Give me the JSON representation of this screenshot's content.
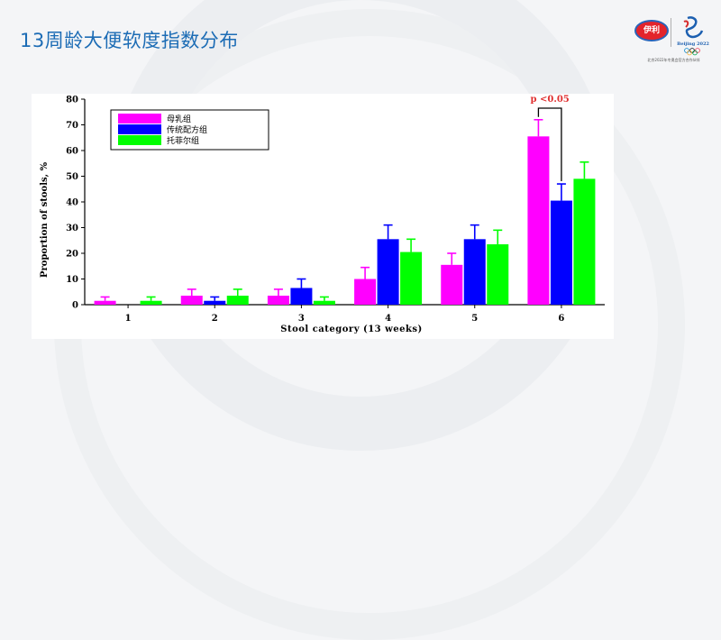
{
  "slide": {
    "title": "13周龄大便软度指数分布",
    "logo_text": "伊利",
    "emblem_text": "Beijing 2022",
    "sponsor_text": "北京2022年冬奥会官方合作伙伴"
  },
  "colors": {
    "title": "#1c6cb5",
    "series": [
      "#ff00ff",
      "#0000ff",
      "#00ff00"
    ],
    "annotation": "#e03030"
  },
  "chart_data": {
    "type": "bar",
    "xlabel": "Stool category (13 weeks)",
    "ylabel": "Proportion of stools, %",
    "ylim": [
      0,
      80
    ],
    "yticks": [
      0,
      10,
      20,
      30,
      40,
      50,
      60,
      70,
      80
    ],
    "categories": [
      "1",
      "2",
      "3",
      "4",
      "5",
      "6"
    ],
    "series": [
      {
        "name": "母乳组",
        "values": [
          1.5,
          3.5,
          3.5,
          10,
          15.5,
          65.5
        ],
        "errors": [
          1.5,
          2.5,
          2.5,
          4.5,
          4.5,
          6.5
        ]
      },
      {
        "name": "传统配方组",
        "values": [
          0,
          1.5,
          6.5,
          25.5,
          25.5,
          40.5
        ],
        "errors": [
          0,
          1.5,
          3.5,
          5.5,
          5.5,
          6.5
        ]
      },
      {
        "name": "托菲尔组",
        "values": [
          1.5,
          3.5,
          1.5,
          20.5,
          23.5,
          49
        ],
        "errors": [
          1.5,
          2.5,
          1.5,
          5,
          5.5,
          6.5
        ]
      }
    ],
    "legend": "top-left",
    "grid": false,
    "annotation": {
      "text": "p <0.05",
      "category": "6",
      "between": [
        "母乳组",
        "传统配方组"
      ]
    }
  }
}
